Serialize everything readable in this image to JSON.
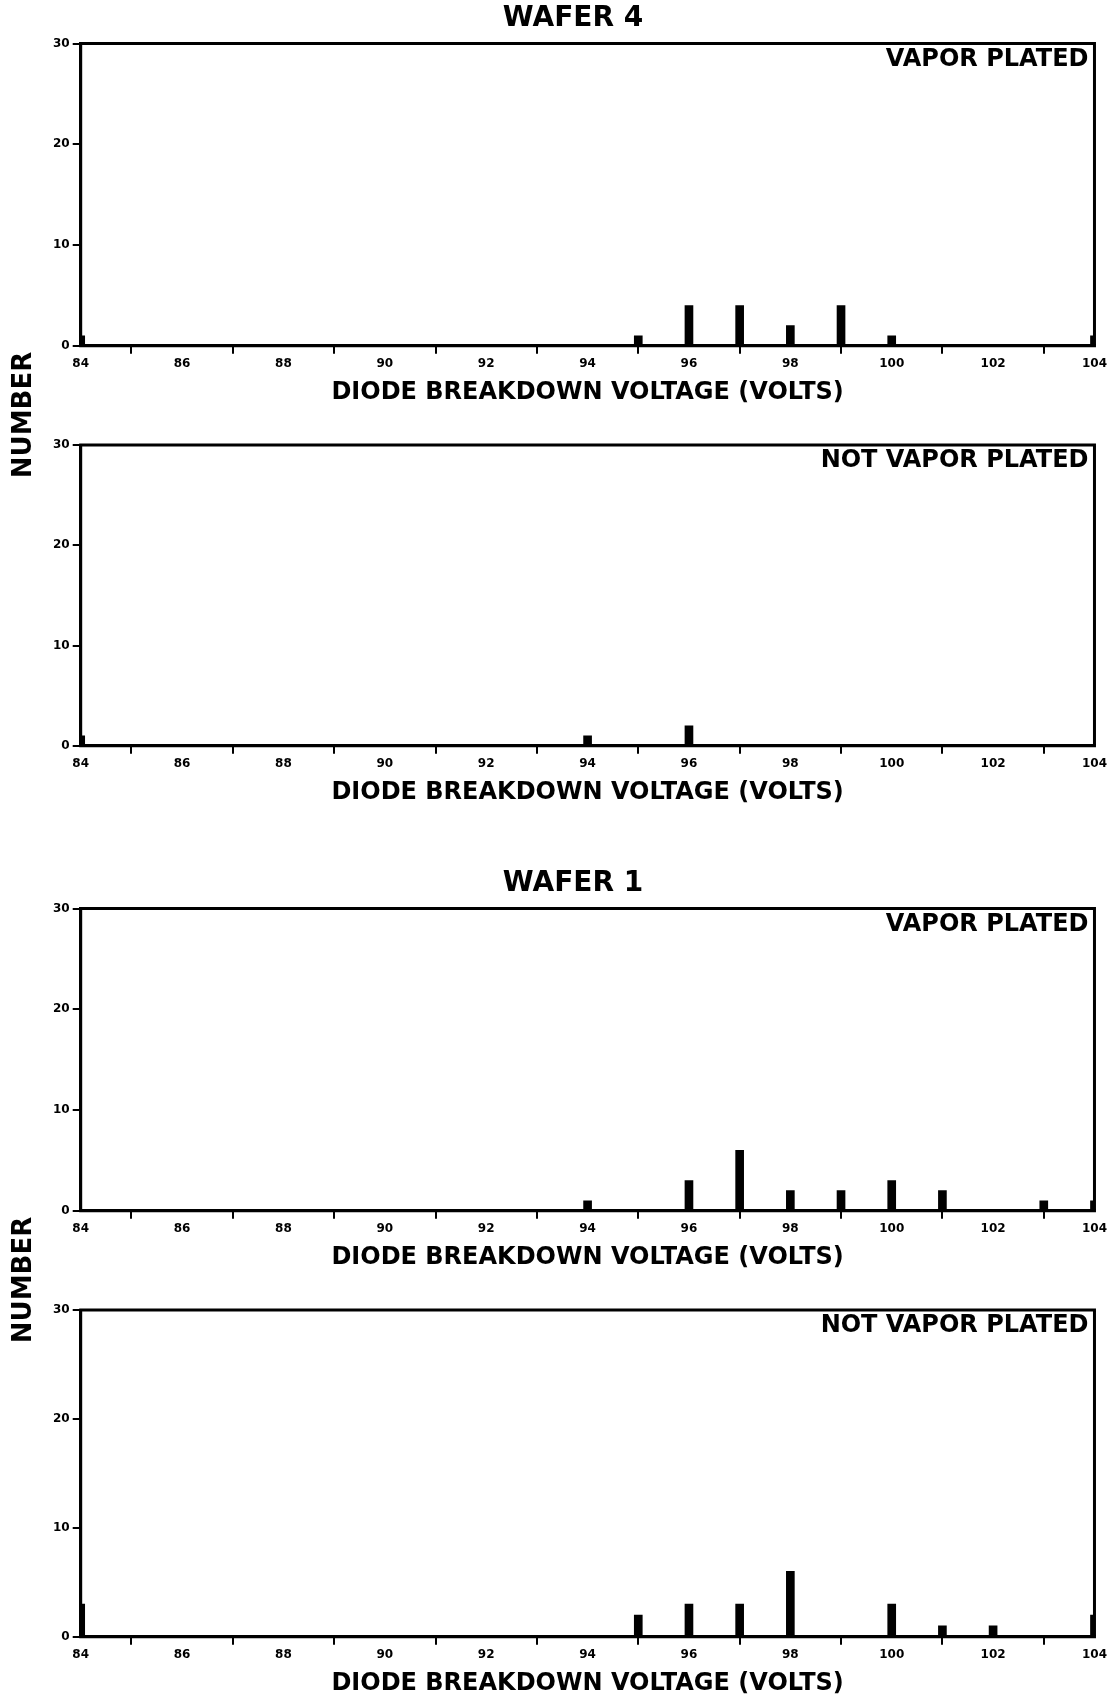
{
  "chart_data": [
    {
      "type": "bar",
      "title": "WAFER 4",
      "ylabel": "NUMBER",
      "xlabel": "DIODE BREAKDOWN VOLTAGE (VOLTS)",
      "annotations": [
        "VAPOR PLATED"
      ],
      "x": [
        84,
        95,
        96,
        97,
        98,
        99,
        100,
        104
      ],
      "values": [
        1,
        1,
        4,
        4,
        2,
        4,
        1,
        1
      ],
      "color": "#000000",
      "xlim": [
        84,
        104
      ],
      "xticks": [
        84,
        86,
        88,
        90,
        92,
        94,
        96,
        98,
        100,
        102,
        104
      ],
      "ylim": [
        0,
        30
      ],
      "yticks": [
        0,
        10,
        20,
        30
      ],
      "grid": false
    },
    {
      "type": "bar",
      "xlabel": "DIODE BREAKDOWN VOLTAGE (VOLTS)",
      "annotations": [
        "NOT VAPOR PLATED"
      ],
      "x": [
        84,
        94,
        96
      ],
      "values": [
        1,
        1,
        2
      ],
      "color": "#000000",
      "xlim": [
        84,
        104
      ],
      "xticks": [
        84,
        86,
        88,
        90,
        92,
        94,
        96,
        98,
        100,
        102,
        104
      ],
      "ylim": [
        0,
        30
      ],
      "yticks": [
        0,
        10,
        20,
        30
      ],
      "grid": false
    },
    {
      "type": "bar",
      "title": "WAFER 1",
      "ylabel": "NUMBER",
      "xlabel": "DIODE BREAKDOWN VOLTAGE (VOLTS)",
      "annotations": [
        "VAPOR PLATED"
      ],
      "x": [
        94,
        96,
        97,
        98,
        99,
        100,
        101,
        103,
        104
      ],
      "values": [
        1,
        3,
        6,
        2,
        2,
        3,
        2,
        1,
        1
      ],
      "color": "#000000",
      "xlim": [
        84,
        104
      ],
      "xticks": [
        84,
        86,
        88,
        90,
        92,
        94,
        96,
        98,
        100,
        102,
        104
      ],
      "ylim": [
        0,
        30
      ],
      "yticks": [
        0,
        10,
        20,
        30
      ],
      "grid": false
    },
    {
      "type": "bar",
      "xlabel": "DIODE BREAKDOWN VOLTAGE (VOLTS)",
      "annotations": [
        "NOT VAPOR PLATED"
      ],
      "x": [
        84,
        95,
        96,
        97,
        98,
        100,
        101,
        102,
        104
      ],
      "values": [
        3,
        2,
        3,
        3,
        6,
        3,
        1,
        1,
        2
      ],
      "color": "#000000",
      "xlim": [
        84,
        104
      ],
      "xticks": [
        84,
        86,
        88,
        90,
        92,
        94,
        96,
        98,
        100,
        102,
        104
      ],
      "ylim": [
        0,
        30
      ],
      "yticks": [
        0,
        10,
        20,
        30
      ],
      "grid": false
    }
  ]
}
